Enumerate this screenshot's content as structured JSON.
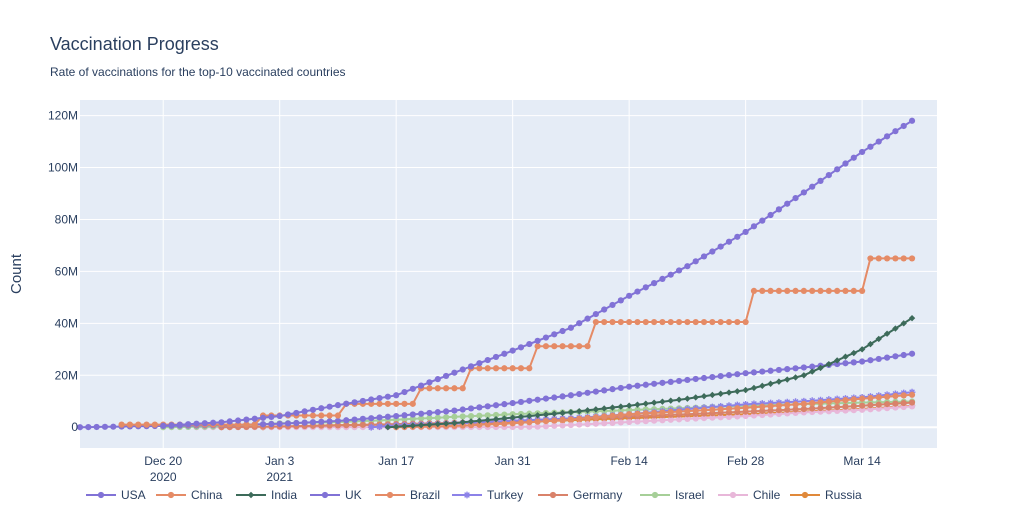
{
  "chart_data": {
    "type": "line",
    "title": "Vaccination Progress",
    "subtitle": "Rate of vaccinations for the top-10 vaccinated countries",
    "xlabel": "",
    "ylabel": "Count",
    "x_range": [
      "2020-12-10",
      "2021-03-23"
    ],
    "ylim": [
      -8000000,
      126000000
    ],
    "grid": true,
    "legend_placement": "bottom",
    "x_ticks": [
      {
        "date": "2020-12-20",
        "label": "Dec 20",
        "sublabel": "2020"
      },
      {
        "date": "2021-01-03",
        "label": "Jan 3",
        "sublabel": "2021"
      },
      {
        "date": "2021-01-17",
        "label": "Jan 17",
        "sublabel": ""
      },
      {
        "date": "2021-01-31",
        "label": "Jan 31",
        "sublabel": ""
      },
      {
        "date": "2021-02-14",
        "label": "Feb 14",
        "sublabel": ""
      },
      {
        "date": "2021-02-28",
        "label": "Feb 28",
        "sublabel": ""
      },
      {
        "date": "2021-03-14",
        "label": "Mar 14",
        "sublabel": ""
      }
    ],
    "y_ticks": [
      {
        "value": 0,
        "label": "0"
      },
      {
        "value": 20000000,
        "label": "20M"
      },
      {
        "value": 40000000,
        "label": "40M"
      },
      {
        "value": 60000000,
        "label": "60M"
      },
      {
        "value": 80000000,
        "label": "80M"
      },
      {
        "value": 100000000,
        "label": "100M"
      },
      {
        "value": 120000000,
        "label": "120M"
      }
    ],
    "series": [
      {
        "name": "USA",
        "color": "#8172d6",
        "marker": "circle",
        "points": [
          [
            "2020-12-20",
            600000
          ],
          [
            "2020-12-27",
            1900000
          ],
          [
            "2021-01-03",
            4300000
          ],
          [
            "2021-01-10",
            8500000
          ],
          [
            "2021-01-17",
            12300000
          ],
          [
            "2021-01-24",
            21000000
          ],
          [
            "2021-01-31",
            29500000
          ],
          [
            "2021-02-07",
            38300000
          ],
          [
            "2021-02-14",
            50600000
          ],
          [
            "2021-02-21",
            62000000
          ],
          [
            "2021-02-28",
            75200000
          ],
          [
            "2021-03-07",
            90400000
          ],
          [
            "2021-03-14",
            106000000
          ],
          [
            "2021-03-20",
            118000000
          ]
        ]
      },
      {
        "name": "China",
        "color": "#e58b66",
        "marker": "circle",
        "points": [
          [
            "2020-12-15",
            1000000
          ],
          [
            "2020-12-31",
            1000000
          ],
          [
            "2021-01-01",
            4500000
          ],
          [
            "2021-01-10",
            4500000
          ],
          [
            "2021-01-11",
            9000000
          ],
          [
            "2021-01-19",
            9000000
          ],
          [
            "2021-01-20",
            15000000
          ],
          [
            "2021-01-25",
            15000000
          ],
          [
            "2021-01-26",
            22700000
          ],
          [
            "2021-02-02",
            22700000
          ],
          [
            "2021-02-03",
            31200000
          ],
          [
            "2021-02-09",
            31200000
          ],
          [
            "2021-02-10",
            40500000
          ],
          [
            "2021-02-28",
            40500000
          ],
          [
            "2021-03-01",
            52500000
          ],
          [
            "2021-03-14",
            52500000
          ],
          [
            "2021-03-15",
            65000000
          ],
          [
            "2021-03-20",
            65000000
          ]
        ]
      },
      {
        "name": "India",
        "color": "#3d6b5a",
        "marker": "diamond",
        "points": [
          [
            "2021-01-16",
            0
          ],
          [
            "2021-01-24",
            1600000
          ],
          [
            "2021-01-31",
            3700000
          ],
          [
            "2021-02-07",
            5800000
          ],
          [
            "2021-02-14",
            8300000
          ],
          [
            "2021-02-21",
            11000000
          ],
          [
            "2021-02-28",
            14300000
          ],
          [
            "2021-03-07",
            20000000
          ],
          [
            "2021-03-14",
            30000000
          ],
          [
            "2021-03-20",
            42000000
          ]
        ]
      },
      {
        "name": "UK",
        "color": "#8172d6",
        "marker": "circle",
        "points": [
          [
            "2020-12-10",
            0
          ],
          [
            "2020-12-20",
            500000
          ],
          [
            "2020-12-27",
            800000
          ],
          [
            "2021-01-03",
            1300000
          ],
          [
            "2021-01-10",
            2400000
          ],
          [
            "2021-01-17",
            4300000
          ],
          [
            "2021-01-24",
            6400000
          ],
          [
            "2021-01-31",
            9300000
          ],
          [
            "2021-02-07",
            12300000
          ],
          [
            "2021-02-14",
            15600000
          ],
          [
            "2021-02-21",
            18200000
          ],
          [
            "2021-02-28",
            20800000
          ],
          [
            "2021-03-07",
            23000000
          ],
          [
            "2021-03-14",
            25300000
          ],
          [
            "2021-03-20",
            28300000
          ]
        ]
      },
      {
        "name": "Brazil",
        "color": "#e58b66",
        "marker": "circle",
        "points": [
          [
            "2021-01-17",
            0
          ],
          [
            "2021-01-24",
            500000
          ],
          [
            "2021-01-31",
            1500000
          ],
          [
            "2021-02-07",
            3000000
          ],
          [
            "2021-02-14",
            5000000
          ],
          [
            "2021-02-21",
            6200000
          ],
          [
            "2021-02-28",
            7500000
          ],
          [
            "2021-03-07",
            9000000
          ],
          [
            "2021-03-14",
            11000000
          ],
          [
            "2021-03-20",
            12500000
          ]
        ]
      },
      {
        "name": "Turkey",
        "color": "#8c82e8",
        "marker": "star",
        "points": [
          [
            "2021-01-14",
            0
          ],
          [
            "2021-01-17",
            700000
          ],
          [
            "2021-01-24",
            1400000
          ],
          [
            "2021-01-31",
            2500000
          ],
          [
            "2021-02-07",
            3400000
          ],
          [
            "2021-02-14",
            5000000
          ],
          [
            "2021-02-21",
            7000000
          ],
          [
            "2021-02-28",
            8800000
          ],
          [
            "2021-03-07",
            10000000
          ],
          [
            "2021-03-14",
            11500000
          ],
          [
            "2021-03-20",
            13500000
          ]
        ]
      },
      {
        "name": "Germany",
        "color": "#d9826a",
        "marker": "circle",
        "points": [
          [
            "2020-12-27",
            0
          ],
          [
            "2021-01-03",
            300000
          ],
          [
            "2021-01-10",
            700000
          ],
          [
            "2021-01-17",
            1200000
          ],
          [
            "2021-01-24",
            1700000
          ],
          [
            "2021-01-31",
            2400000
          ],
          [
            "2021-02-07",
            3300000
          ],
          [
            "2021-02-14",
            4200000
          ],
          [
            "2021-02-21",
            5000000
          ],
          [
            "2021-02-28",
            6000000
          ],
          [
            "2021-03-07",
            7000000
          ],
          [
            "2021-03-14",
            8300000
          ],
          [
            "2021-03-20",
            9500000
          ]
        ]
      },
      {
        "name": "Israel",
        "color": "#a6cf98",
        "marker": "circle",
        "points": [
          [
            "2020-12-20",
            0
          ],
          [
            "2020-12-27",
            300000
          ],
          [
            "2021-01-03",
            1500000
          ],
          [
            "2021-01-10",
            2000000
          ],
          [
            "2021-01-17",
            2900000
          ],
          [
            "2021-01-24",
            4000000
          ],
          [
            "2021-01-31",
            5000000
          ],
          [
            "2021-02-07",
            5800000
          ],
          [
            "2021-02-14",
            6600000
          ],
          [
            "2021-02-21",
            7400000
          ],
          [
            "2021-02-28",
            8300000
          ],
          [
            "2021-03-07",
            8900000
          ],
          [
            "2021-03-14",
            9500000
          ],
          [
            "2021-03-20",
            9900000
          ]
        ]
      },
      {
        "name": "Chile",
        "color": "#e8b7d9",
        "marker": "circle",
        "points": [
          [
            "2020-12-24",
            0
          ],
          [
            "2021-01-03",
            30000
          ],
          [
            "2021-01-31",
            60000
          ],
          [
            "2021-02-03",
            200000
          ],
          [
            "2021-02-14",
            2000000
          ],
          [
            "2021-02-21",
            3200000
          ],
          [
            "2021-02-28",
            4300000
          ],
          [
            "2021-03-07",
            5700000
          ],
          [
            "2021-03-14",
            6700000
          ],
          [
            "2021-03-20",
            8000000
          ]
        ]
      },
      {
        "name": "Russia",
        "color": "#e0893a",
        "marker": "circle",
        "points": [
          [
            "2021-01-01",
            0
          ],
          [
            "2021-01-10",
            800000
          ],
          [
            "2021-01-17",
            1000000
          ],
          [
            "2021-01-24",
            1500000
          ],
          [
            "2021-01-31",
            2000000
          ],
          [
            "2021-02-07",
            2700000
          ],
          [
            "2021-02-14",
            3500000
          ],
          [
            "2021-02-21",
            4200000
          ],
          [
            "2021-02-28",
            5000000
          ],
          [
            "2021-03-07",
            6000000
          ],
          [
            "2021-03-14",
            7000000
          ],
          [
            "2021-03-20",
            8200000
          ]
        ]
      }
    ]
  }
}
